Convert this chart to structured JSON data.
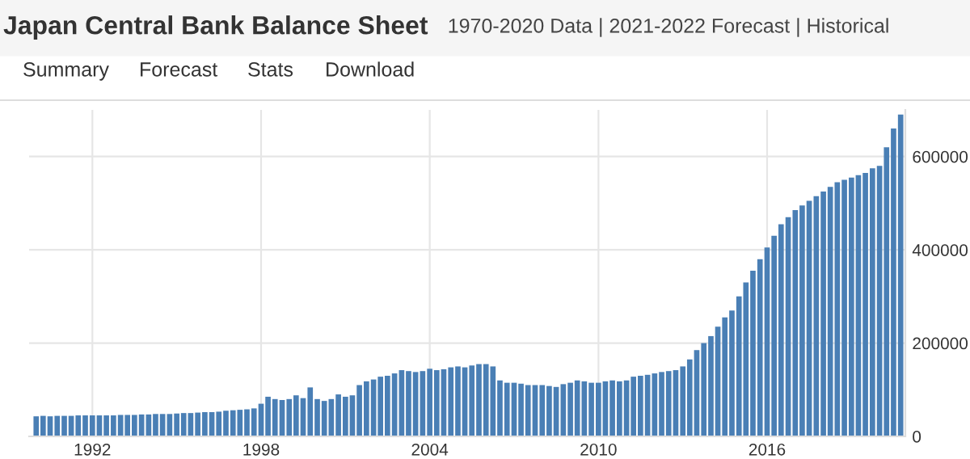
{
  "chart_data": {
    "type": "bar",
    "title": "Japan Central Bank Balance Sheet",
    "subtitle": "1970-2020 Data | 2021-2022 Forecast | Historical",
    "annotations": [
      "Summary",
      "Forecast",
      "Stats",
      "Download"
    ],
    "x": [
      "1990-01",
      "1990-04",
      "1990-07",
      "1990-10",
      "1991-01",
      "1991-04",
      "1991-07",
      "1991-10",
      "1992-01",
      "1992-04",
      "1992-07",
      "1992-10",
      "1993-01",
      "1993-04",
      "1993-07",
      "1993-10",
      "1994-01",
      "1994-04",
      "1994-07",
      "1994-10",
      "1995-01",
      "1995-04",
      "1995-07",
      "1995-10",
      "1996-01",
      "1996-04",
      "1996-07",
      "1996-10",
      "1997-01",
      "1997-04",
      "1997-07",
      "1997-10",
      "1998-01",
      "1998-04",
      "1998-07",
      "1998-10",
      "1999-01",
      "1999-04",
      "1999-07",
      "1999-10",
      "2000-01",
      "2000-04",
      "2000-07",
      "2000-10",
      "2001-01",
      "2001-04",
      "2001-07",
      "2001-10",
      "2002-01",
      "2002-04",
      "2002-07",
      "2002-10",
      "2003-01",
      "2003-04",
      "2003-07",
      "2003-10",
      "2004-01",
      "2004-04",
      "2004-07",
      "2004-10",
      "2005-01",
      "2005-04",
      "2005-07",
      "2005-10",
      "2006-01",
      "2006-04",
      "2006-07",
      "2006-10",
      "2007-01",
      "2007-04",
      "2007-07",
      "2007-10",
      "2008-01",
      "2008-04",
      "2008-07",
      "2008-10",
      "2009-01",
      "2009-04",
      "2009-07",
      "2009-10",
      "2010-01",
      "2010-04",
      "2010-07",
      "2010-10",
      "2011-01",
      "2011-04",
      "2011-07",
      "2011-10",
      "2012-01",
      "2012-04",
      "2012-07",
      "2012-10",
      "2013-01",
      "2013-04",
      "2013-07",
      "2013-10",
      "2014-01",
      "2014-04",
      "2014-07",
      "2014-10",
      "2015-01",
      "2015-04",
      "2015-07",
      "2015-10",
      "2016-01",
      "2016-04",
      "2016-07",
      "2016-10",
      "2017-01",
      "2017-04",
      "2017-07",
      "2017-10",
      "2018-01",
      "2018-04",
      "2018-07",
      "2018-10",
      "2019-01",
      "2019-04",
      "2019-07",
      "2019-10",
      "2020-01",
      "2020-04",
      "2020-07",
      "2020-10"
    ],
    "values": [
      43000,
      44000,
      43000,
      44000,
      44000,
      44000,
      45000,
      45000,
      45000,
      45000,
      45000,
      45000,
      46000,
      46000,
      46000,
      47000,
      47000,
      48000,
      48000,
      48000,
      49000,
      50000,
      50000,
      51000,
      52000,
      52000,
      53000,
      55000,
      56000,
      57000,
      58000,
      60000,
      70000,
      85000,
      80000,
      78000,
      80000,
      88000,
      82000,
      105000,
      80000,
      76000,
      80000,
      90000,
      85000,
      88000,
      110000,
      118000,
      122000,
      128000,
      130000,
      135000,
      142000,
      140000,
      138000,
      140000,
      145000,
      142000,
      144000,
      148000,
      150000,
      148000,
      152000,
      155000,
      155000,
      150000,
      120000,
      115000,
      115000,
      113000,
      110000,
      110000,
      110000,
      108000,
      106000,
      112000,
      115000,
      120000,
      118000,
      115000,
      115000,
      118000,
      120000,
      118000,
      120000,
      128000,
      130000,
      132000,
      135000,
      138000,
      140000,
      142000,
      150000,
      165000,
      185000,
      200000,
      215000,
      235000,
      255000,
      270000,
      300000,
      330000,
      355000,
      380000,
      405000,
      430000,
      455000,
      470000,
      485000,
      495000,
      505000,
      515000,
      525000,
      535000,
      545000,
      550000,
      555000,
      560000,
      565000,
      575000,
      580000,
      620000,
      660000,
      690000
    ],
    "color": "#4a7fb5",
    "xlim": [
      "1989-10",
      "2020-12"
    ],
    "xticks": [
      "1992",
      "1998",
      "2004",
      "2010",
      "2016"
    ],
    "ylim": [
      0,
      700000
    ],
    "yticks": [
      0,
      200000,
      400000,
      600000
    ],
    "grid": true,
    "legend": false
  }
}
